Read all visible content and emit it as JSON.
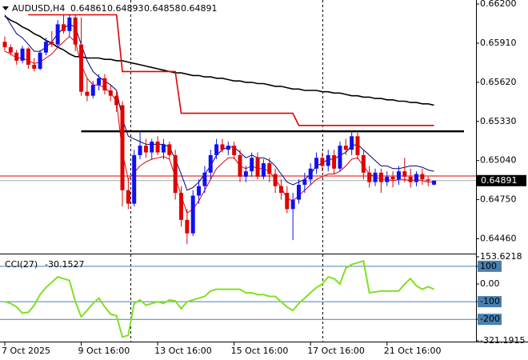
{
  "chart_data": {
    "type": "candlestick",
    "symbol": "AUDUSD,H4",
    "header_values": [
      0.64861,
      0.64893,
      0.64858,
      0.64891
    ],
    "up_color": "#1010f0",
    "down_color": "#e00000",
    "ohlc": [
      [
        0.6592,
        0.6596,
        0.6585,
        0.6588
      ],
      [
        0.6588,
        0.659,
        0.6582,
        0.6584
      ],
      [
        0.6584,
        0.6586,
        0.6575,
        0.6578
      ],
      [
        0.6578,
        0.6589,
        0.6576,
        0.6587
      ],
      [
        0.6587,
        0.6588,
        0.6572,
        0.6575
      ],
      [
        0.6575,
        0.658,
        0.657,
        0.6572
      ],
      [
        0.6572,
        0.6586,
        0.6571,
        0.6584
      ],
      [
        0.6584,
        0.6595,
        0.6582,
        0.6592
      ],
      [
        0.6592,
        0.66,
        0.6588,
        0.659
      ],
      [
        0.659,
        0.6608,
        0.6588,
        0.6605
      ],
      [
        0.6605,
        0.6612,
        0.6598,
        0.66
      ],
      [
        0.66,
        0.6612,
        0.6596,
        0.661
      ],
      [
        0.661,
        0.6612,
        0.6585,
        0.659
      ],
      [
        0.659,
        0.661,
        0.6552,
        0.6555
      ],
      [
        0.6555,
        0.6565,
        0.6548,
        0.6552
      ],
      [
        0.6552,
        0.6563,
        0.655,
        0.656
      ],
      [
        0.656,
        0.6568,
        0.6556,
        0.6565
      ],
      [
        0.6565,
        0.6568,
        0.6553,
        0.6556
      ],
      [
        0.6556,
        0.656,
        0.6548,
        0.6552
      ],
      [
        0.6552,
        0.6555,
        0.654,
        0.6545
      ],
      [
        0.6545,
        0.6548,
        0.647,
        0.6482
      ],
      [
        0.6482,
        0.649,
        0.6468,
        0.6472
      ],
      [
        0.6472,
        0.6512,
        0.647,
        0.6508
      ],
      [
        0.6508,
        0.6525,
        0.6505,
        0.6515
      ],
      [
        0.6515,
        0.652,
        0.6506,
        0.651
      ],
      [
        0.651,
        0.652,
        0.6505,
        0.6518
      ],
      [
        0.6518,
        0.6522,
        0.6508,
        0.651
      ],
      [
        0.651,
        0.652,
        0.6505,
        0.6516
      ],
      [
        0.6516,
        0.6518,
        0.6505,
        0.6508
      ],
      [
        0.6508,
        0.6512,
        0.6475,
        0.648
      ],
      [
        0.648,
        0.6485,
        0.6455,
        0.646
      ],
      [
        0.646,
        0.6468,
        0.6442,
        0.645
      ],
      [
        0.645,
        0.6482,
        0.6448,
        0.6478
      ],
      [
        0.6478,
        0.649,
        0.6472,
        0.6485
      ],
      [
        0.6485,
        0.65,
        0.648,
        0.6495
      ],
      [
        0.6495,
        0.6512,
        0.649,
        0.6508
      ],
      [
        0.6508,
        0.652,
        0.6505,
        0.6516
      ],
      [
        0.6516,
        0.652,
        0.651,
        0.6512
      ],
      [
        0.6512,
        0.6518,
        0.6508,
        0.6515
      ],
      [
        0.6515,
        0.6518,
        0.6505,
        0.6508
      ],
      [
        0.6508,
        0.6512,
        0.6488,
        0.6492
      ],
      [
        0.6492,
        0.65,
        0.6488,
        0.6496
      ],
      [
        0.6496,
        0.651,
        0.6492,
        0.6506
      ],
      [
        0.6506,
        0.651,
        0.649,
        0.6492
      ],
      [
        0.6492,
        0.6505,
        0.649,
        0.6502
      ],
      [
        0.6502,
        0.6506,
        0.6488,
        0.6494
      ],
      [
        0.6494,
        0.6498,
        0.648,
        0.6485
      ],
      [
        0.6485,
        0.649,
        0.6475,
        0.648
      ],
      [
        0.648,
        0.6485,
        0.6465,
        0.6468
      ],
      [
        0.6468,
        0.648,
        0.6445,
        0.6475
      ],
      [
        0.6475,
        0.649,
        0.6472,
        0.6486
      ],
      [
        0.6486,
        0.6495,
        0.648,
        0.649
      ],
      [
        0.649,
        0.6502,
        0.6486,
        0.6498
      ],
      [
        0.6498,
        0.651,
        0.6494,
        0.6506
      ],
      [
        0.6506,
        0.651,
        0.6496,
        0.65
      ],
      [
        0.65,
        0.6512,
        0.6496,
        0.6508
      ],
      [
        0.6508,
        0.6512,
        0.6494,
        0.6498
      ],
      [
        0.6498,
        0.6518,
        0.6496,
        0.6515
      ],
      [
        0.6515,
        0.652,
        0.6508,
        0.6512
      ],
      [
        0.6512,
        0.6525,
        0.6508,
        0.6522
      ],
      [
        0.6522,
        0.6526,
        0.6505,
        0.6508
      ],
      [
        0.6508,
        0.6512,
        0.649,
        0.6495
      ],
      [
        0.6495,
        0.65,
        0.6484,
        0.6488
      ],
      [
        0.6488,
        0.6498,
        0.6485,
        0.6495
      ],
      [
        0.6495,
        0.6498,
        0.648,
        0.6488
      ],
      [
        0.6488,
        0.6496,
        0.6485,
        0.6492
      ],
      [
        0.6492,
        0.6496,
        0.6484,
        0.649
      ],
      [
        0.649,
        0.65,
        0.6486,
        0.6496
      ],
      [
        0.6496,
        0.6506,
        0.6488,
        0.6492
      ],
      [
        0.6492,
        0.6498,
        0.6484,
        0.6488
      ],
      [
        0.6488,
        0.6496,
        0.6485,
        0.6494
      ],
      [
        0.6494,
        0.6498,
        0.6486,
        0.649
      ],
      [
        0.649,
        0.6492,
        0.6485,
        0.6489
      ],
      [
        0.64861,
        0.64893,
        0.64858,
        0.64891
      ]
    ],
    "ylim": [
      0.6435,
      0.6623
    ],
    "yticks": [
      {
        "value": 0.662,
        "label": "0.66200"
      },
      {
        "value": 0.6591,
        "label": "0.65910"
      },
      {
        "value": 0.6562,
        "label": "0.65620"
      },
      {
        "value": 0.6533,
        "label": "0.65330"
      },
      {
        "value": 0.6504,
        "label": "0.65040"
      },
      {
        "value": 0.6475,
        "label": "0.64750"
      },
      {
        "value": 0.6446,
        "label": "0.64460"
      }
    ],
    "xticks": [
      {
        "value": 0,
        "label": "7 Oct 2025"
      },
      {
        "value": 13,
        "label": "9 Oct 16:00"
      },
      {
        "value": 26,
        "label": "13 Oct 16:00"
      },
      {
        "value": 39,
        "label": "15 Oct 16:00"
      },
      {
        "value": 52,
        "label": "17 Oct 16:00"
      },
      {
        "value": 65,
        "label": "21 Oct 16:00"
      }
    ],
    "overlays": [
      {
        "color": "#000000",
        "width": 1.6,
        "values": [
          0.6611,
          0.6608,
          0.6606,
          0.6603,
          0.6601,
          0.6598,
          0.6596,
          0.6593,
          0.6591,
          0.6588,
          0.6586,
          0.6583,
          0.6581,
          0.6581,
          0.658,
          0.658,
          0.658,
          0.6579,
          0.6579,
          0.6578,
          0.6578,
          0.6577,
          0.6576,
          0.6575,
          0.6574,
          0.6573,
          0.6572,
          0.6571,
          0.657,
          0.6569,
          0.6569,
          0.6568,
          0.6567,
          0.6567,
          0.6566,
          0.6566,
          0.6565,
          0.6565,
          0.6564,
          0.6563,
          0.6563,
          0.6562,
          0.6562,
          0.6561,
          0.6561,
          0.656,
          0.6559,
          0.6559,
          0.6558,
          0.6557,
          0.6557,
          0.6556,
          0.6556,
          0.6556,
          0.6555,
          0.6555,
          0.6554,
          0.6554,
          0.6553,
          0.6552,
          0.6552,
          0.6551,
          0.6551,
          0.655,
          0.655,
          0.6549,
          0.6549,
          0.6548,
          0.6548,
          0.6547,
          0.6547,
          0.6546,
          0.6546,
          0.6545
        ]
      },
      {
        "color": "#e00000",
        "width": 1.6,
        "values": [
          null,
          null,
          null,
          null,
          0.6612,
          0.6612,
          0.6612,
          0.6612,
          0.6612,
          0.6612,
          0.6612,
          0.6612,
          0.6612,
          0.6612,
          0.6612,
          0.6612,
          0.6612,
          0.6612,
          0.6612,
          0.6612,
          0.657,
          0.657,
          0.657,
          0.657,
          0.657,
          0.657,
          0.657,
          0.657,
          0.657,
          0.657,
          0.6539,
          0.6539,
          0.6539,
          0.6539,
          0.6539,
          0.6539,
          0.6539,
          0.6539,
          0.6539,
          0.6539,
          0.6539,
          0.6539,
          0.6539,
          0.6539,
          0.6539,
          0.6539,
          0.6539,
          0.6539,
          0.6539,
          0.6539,
          0.653,
          0.653,
          0.653,
          0.653,
          0.653,
          0.653,
          0.653,
          0.653,
          0.653,
          0.653,
          0.653,
          0.653,
          0.653,
          0.653,
          0.653,
          0.653,
          0.653,
          0.653,
          0.653,
          0.653,
          0.653,
          0.653,
          0.653,
          0.653
        ]
      },
      {
        "color": "#00007a",
        "width": 1,
        "values": [
          0.6612,
          0.6605,
          0.6598,
          0.6595,
          0.659,
          0.6585,
          0.6585,
          0.6588,
          0.6592,
          0.6598,
          0.6602,
          0.6605,
          0.6603,
          0.659,
          0.6578,
          0.657,
          0.6566,
          0.6563,
          0.656,
          0.6556,
          0.6535,
          0.6522,
          0.652,
          0.6518,
          0.6516,
          0.6516,
          0.6516,
          0.6516,
          0.6514,
          0.6505,
          0.6494,
          0.6482,
          0.6484,
          0.6488,
          0.6494,
          0.65,
          0.6508,
          0.6512,
          0.6514,
          0.6514,
          0.651,
          0.6506,
          0.6508,
          0.6506,
          0.6506,
          0.6504,
          0.65,
          0.6494,
          0.6488,
          0.6486,
          0.6488,
          0.649,
          0.6494,
          0.65,
          0.6502,
          0.6505,
          0.6505,
          0.6508,
          0.651,
          0.6515,
          0.6516,
          0.6512,
          0.6508,
          0.6504,
          0.65,
          0.65,
          0.6498,
          0.6498,
          0.6499,
          0.65,
          0.65,
          0.6499,
          0.6497,
          0.6496
        ]
      },
      {
        "color": "#e00000",
        "width": 1,
        "values": [
          0.6585,
          0.6583,
          0.658,
          0.658,
          0.6578,
          0.6576,
          0.6577,
          0.658,
          0.6583,
          0.6588,
          0.6592,
          0.6596,
          0.6592,
          0.6575,
          0.6565,
          0.656,
          0.656,
          0.6558,
          0.6554,
          0.6548,
          0.651,
          0.649,
          0.6495,
          0.65,
          0.6503,
          0.6505,
          0.6506,
          0.6507,
          0.6505,
          0.6492,
          0.6478,
          0.6465,
          0.6468,
          0.6474,
          0.6482,
          0.649,
          0.6498,
          0.6502,
          0.6506,
          0.6506,
          0.65,
          0.6498,
          0.65,
          0.6498,
          0.6498,
          0.6496,
          0.649,
          0.6484,
          0.6476,
          0.6474,
          0.6478,
          0.6482,
          0.6486,
          0.649,
          0.6492,
          0.6494,
          0.6494,
          0.6496,
          0.65,
          0.6505,
          0.6506,
          0.65,
          0.6494,
          0.6492,
          0.649,
          0.649,
          0.6489,
          0.649,
          0.649,
          0.6489,
          0.649,
          0.6489,
          0.6488,
          0.6488
        ]
      }
    ],
    "support_line": 0.65257,
    "bid_line": 0.64925,
    "last_price": 0.64891,
    "cci": {
      "type": "line",
      "label": "CCI(27)",
      "current": -30.1527,
      "color": "#80e020",
      "level_color": "#4a7fb0",
      "values": [
        -100,
        -110,
        -130,
        -165,
        -160,
        -120,
        -60,
        -20,
        10,
        40,
        30,
        20,
        -100,
        -185,
        -150,
        -110,
        -80,
        -130,
        -170,
        -180,
        -300,
        -290,
        -110,
        -90,
        -120,
        -110,
        -100,
        -110,
        -90,
        -95,
        -140,
        -100,
        -90,
        -80,
        -70,
        -40,
        -30,
        -30,
        -30,
        -30,
        -30,
        -50,
        -50,
        -60,
        -60,
        -70,
        -70,
        -100,
        -130,
        -150,
        -110,
        -80,
        -50,
        -20,
        0,
        40,
        30,
        0,
        90,
        110,
        120,
        130,
        -50,
        -45,
        -40,
        -40,
        -40,
        -40,
        0,
        30,
        -10,
        -30,
        -15,
        -30.1527
      ],
      "ylim": [
        -321.1915,
        153.6218
      ],
      "yticks": [
        153.6218,
        100,
        {
          "value": 0,
          "label": "0.00"
        },
        -100,
        -200,
        -321.1915
      ],
      "levels": [
        100,
        -100,
        -200
      ]
    }
  }
}
